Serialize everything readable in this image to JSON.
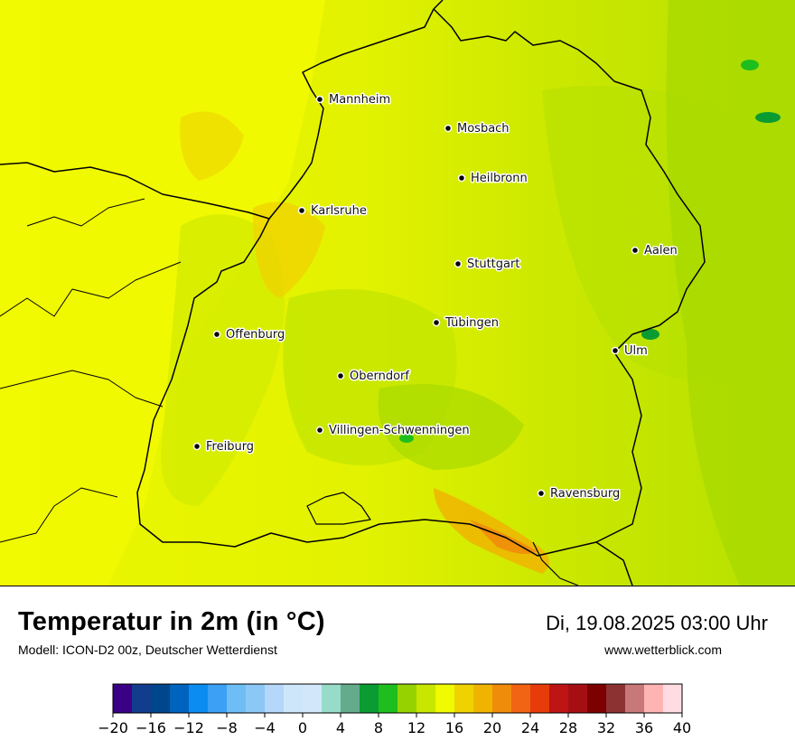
{
  "title": "Temperatur in 2m (in °C)",
  "subtitle": "Modell: ICON-D2 00z, Deutscher Wetterdienst",
  "datetime": "Di, 19.08.2025 03:00 Uhr",
  "website": "www.wetterblick.com",
  "cities": [
    {
      "name": "Mannheim"
    },
    {
      "name": "Mosbach"
    },
    {
      "name": "Heilbronn"
    },
    {
      "name": "Karlsruhe"
    },
    {
      "name": "Aalen"
    },
    {
      "name": "Stuttgart"
    },
    {
      "name": "Tübingen"
    },
    {
      "name": "Offenburg"
    },
    {
      "name": "Ulm"
    },
    {
      "name": "Oberndorf"
    },
    {
      "name": "Villingen-Schwenningen"
    },
    {
      "name": "Freiburg"
    },
    {
      "name": "Ravensburg"
    }
  ],
  "legend": {
    "min": -20,
    "max": 40,
    "step": 2,
    "tick_labels": [
      "−20",
      "−16",
      "−12",
      "−8",
      "−4",
      "0",
      "4",
      "8",
      "12",
      "16",
      "20",
      "24",
      "28",
      "32",
      "36",
      "40"
    ],
    "colors": [
      "#3a0086",
      "#123c8c",
      "#00468c",
      "#0064be",
      "#0a8cf0",
      "#3ca0f5",
      "#6ebef5",
      "#8cc8f5",
      "#b4d7fa",
      "#cde6fa",
      "#d2e8fa",
      "#96dcc8",
      "#64aa8c",
      "#0a9b32",
      "#1ebe1e",
      "#96d200",
      "#c8e600",
      "#f0fa00",
      "#f0d200",
      "#f0b400",
      "#f08c0a",
      "#f06414",
      "#e63c0a",
      "#be1414",
      "#a50f14",
      "#7d0000",
      "#8c3232",
      "#c87878",
      "#ffb4b4",
      "#ffdce1"
    ]
  }
}
